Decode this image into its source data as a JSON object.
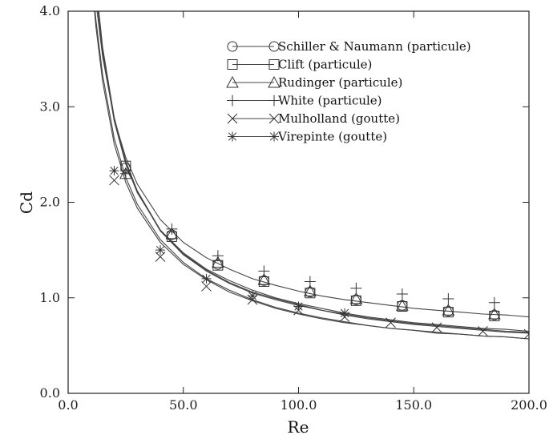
{
  "chart_data": {
    "type": "line",
    "xlabel": "Re",
    "ylabel": "Cd",
    "xlim": [
      0,
      200
    ],
    "ylim": [
      0,
      4
    ],
    "x_ticks": [
      0,
      50,
      100,
      150,
      200
    ],
    "x_tick_labels": [
      "0.0",
      "50.0",
      "100.0",
      "150.0",
      "200.0"
    ],
    "y_ticks": [
      0,
      1,
      2,
      3,
      4
    ],
    "y_tick_labels": [
      "0.0",
      "1.0",
      "2.0",
      "3.0",
      "4.0"
    ],
    "legend_position": "top-right",
    "grid": false,
    "x": [
      10,
      12,
      15,
      20,
      25,
      30,
      40,
      50,
      60,
      70,
      80,
      90,
      100,
      110,
      120,
      130,
      140,
      150,
      160,
      170,
      180,
      190,
      200
    ],
    "series": [
      {
        "name": "Schiller & Naumann (particule)",
        "marker": "circle",
        "values": [
          4.98,
          4.3,
          3.62,
          2.89,
          2.43,
          2.12,
          1.71,
          1.46,
          1.29,
          1.16,
          1.06,
          0.99,
          0.93,
          0.87,
          0.83,
          0.79,
          0.76,
          0.73,
          0.71,
          0.69,
          0.67,
          0.65,
          0.64
        ],
        "marker_x": [
          25,
          45,
          65,
          85,
          105,
          125,
          145,
          165,
          185
        ],
        "marker_values": [
          2.36,
          1.66,
          1.35,
          1.18,
          1.06,
          0.98,
          0.92,
          0.86,
          0.82
        ]
      },
      {
        "name": "Clift (particule)",
        "marker": "square",
        "values": [
          4.93,
          4.27,
          3.59,
          2.87,
          2.42,
          2.11,
          1.7,
          1.45,
          1.28,
          1.15,
          1.05,
          0.98,
          0.92,
          0.87,
          0.82,
          0.78,
          0.75,
          0.72,
          0.7,
          0.68,
          0.66,
          0.64,
          0.63
        ],
        "marker_x": [
          25,
          45,
          65,
          85,
          105,
          125,
          145,
          165,
          185
        ],
        "marker_values": [
          2.38,
          1.64,
          1.34,
          1.17,
          1.05,
          0.97,
          0.91,
          0.85,
          0.81
        ]
      },
      {
        "name": "Rudinger (particule)",
        "marker": "triangle",
        "values": [
          4.86,
          4.22,
          3.56,
          2.85,
          2.4,
          2.1,
          1.71,
          1.47,
          1.3,
          1.18,
          1.08,
          1.0,
          0.94,
          0.89,
          0.84,
          0.8,
          0.77,
          0.74,
          0.72,
          0.7,
          0.68,
          0.67,
          0.65
        ],
        "marker_x": [
          25,
          45,
          65,
          85,
          105,
          125,
          145,
          165,
          185
        ],
        "marker_values": [
          2.3,
          1.67,
          1.37,
          1.19,
          1.07,
          0.99,
          0.92,
          0.87,
          0.83
        ]
      },
      {
        "name": "White (particule)",
        "marker": "plus",
        "values": [
          4.68,
          4.11,
          3.52,
          2.87,
          2.47,
          2.19,
          1.82,
          1.58,
          1.42,
          1.3,
          1.2,
          1.13,
          1.07,
          1.02,
          0.98,
          0.95,
          0.92,
          0.89,
          0.87,
          0.85,
          0.83,
          0.82,
          0.8
        ],
        "marker_x": [
          25,
          45,
          65,
          85,
          105,
          125,
          145,
          165,
          185
        ],
        "marker_values": [
          2.3,
          1.72,
          1.44,
          1.28,
          1.17,
          1.1,
          1.04,
          0.99,
          0.95
        ]
      },
      {
        "name": "Mulholland (goutte)",
        "marker": "x",
        "values": [
          4.41,
          3.85,
          3.26,
          2.61,
          2.21,
          1.94,
          1.58,
          1.35,
          1.19,
          1.06,
          0.97,
          0.89,
          0.83,
          0.78,
          0.74,
          0.71,
          0.68,
          0.66,
          0.63,
          0.62,
          0.6,
          0.59,
          0.57
        ],
        "marker_x": [
          20,
          40,
          60,
          80,
          100,
          120,
          140,
          160,
          180,
          200
        ],
        "marker_values": [
          2.23,
          1.43,
          1.12,
          0.98,
          0.87,
          0.8,
          0.74,
          0.69,
          0.65,
          0.62
        ]
      },
      {
        "name": "Virepinte (goutte)",
        "marker": "asterisk",
        "values": [
          4.49,
          3.92,
          3.33,
          2.67,
          2.26,
          1.98,
          1.61,
          1.37,
          1.2,
          1.08,
          0.98,
          0.9,
          0.84,
          0.79,
          0.75,
          0.71,
          0.68,
          0.66,
          0.64,
          0.62,
          0.6,
          0.59,
          0.57
        ],
        "marker_x": [
          20,
          40,
          60,
          80,
          100,
          120
        ],
        "marker_values": [
          2.33,
          1.5,
          1.2,
          1.02,
          0.91,
          0.84
        ]
      }
    ]
  }
}
